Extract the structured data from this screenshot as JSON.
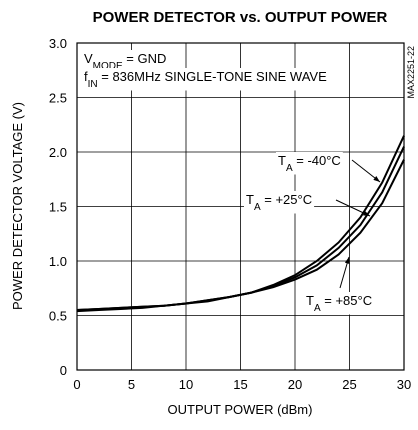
{
  "chart_data": {
    "type": "line",
    "title": "POWER DETECTOR vs. OUTPUT POWER",
    "x_label": "OUTPUT POWER (dBm)",
    "y_label": "POWER DETECTOR VOLTAGE (V)",
    "figure_code": "MAX2251-22",
    "conditions": [
      [
        "V",
        "MODE",
        " = GND"
      ],
      [
        "f",
        "IN",
        " = 836MHz SINGLE-TONE SINE WAVE"
      ]
    ],
    "x": [
      0,
      2,
      4,
      6,
      8,
      10,
      12,
      14,
      16,
      18,
      20,
      22,
      24,
      26,
      28,
      30
    ],
    "series": [
      {
        "name": [
          "T",
          "A",
          " = -40°C"
        ],
        "color": "#000000",
        "values": [
          0.55,
          0.56,
          0.57,
          0.58,
          0.59,
          0.61,
          0.64,
          0.67,
          0.71,
          0.78,
          0.87,
          1.0,
          1.17,
          1.4,
          1.72,
          2.15
        ]
      },
      {
        "name": [
          "T",
          "A",
          " = +25°C"
        ],
        "color": "#000000",
        "values": [
          0.55,
          0.56,
          0.57,
          0.58,
          0.59,
          0.61,
          0.64,
          0.67,
          0.71,
          0.77,
          0.85,
          0.96,
          1.12,
          1.33,
          1.63,
          2.05
        ]
      },
      {
        "name": [
          "T",
          "A",
          " = +85°C"
        ],
        "color": "#000000",
        "values": [
          0.54,
          0.55,
          0.56,
          0.57,
          0.59,
          0.61,
          0.63,
          0.67,
          0.71,
          0.76,
          0.83,
          0.92,
          1.06,
          1.26,
          1.53,
          1.93
        ]
      }
    ],
    "xlim": [
      0,
      30
    ],
    "ylim": [
      0,
      3
    ],
    "xticks": [
      0,
      5,
      10,
      15,
      20,
      25,
      30
    ],
    "yticks": [
      0,
      0.5,
      {
        "value": 1,
        "label": "1.0"
      },
      1.5,
      {
        "value": 2,
        "label": "2.0"
      },
      2.5,
      {
        "value": 3,
        "label": "3.0"
      }
    ],
    "grid": true
  }
}
